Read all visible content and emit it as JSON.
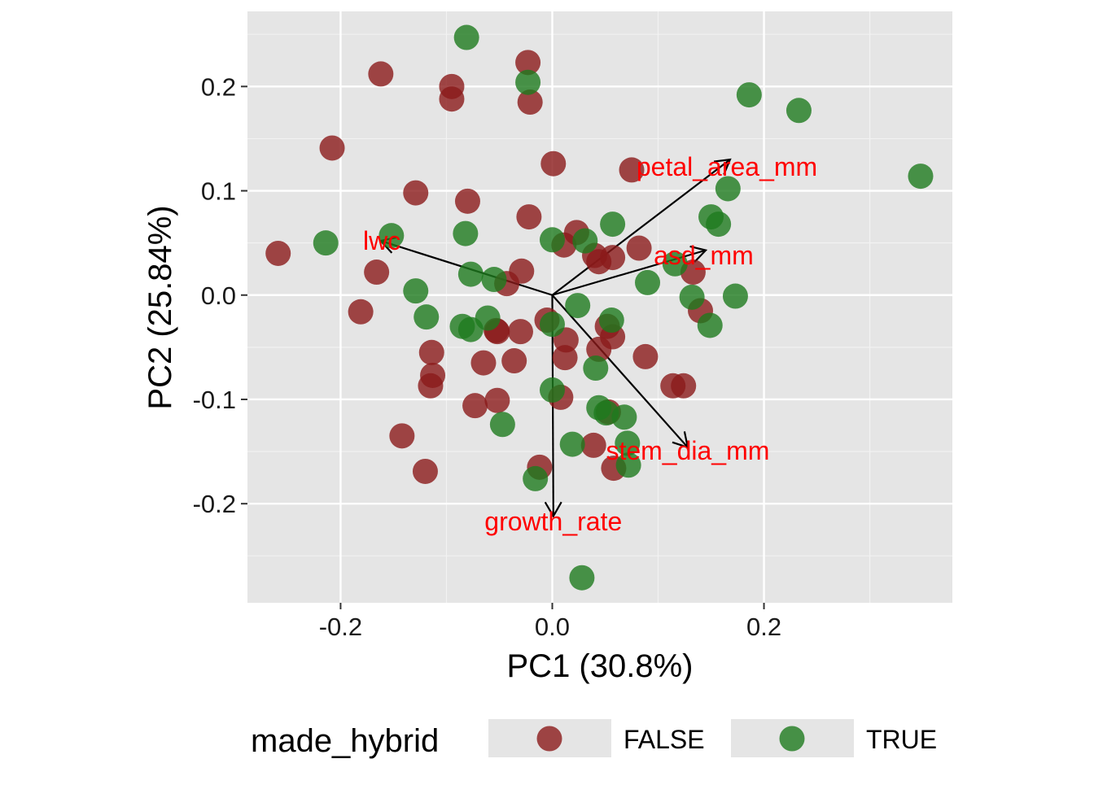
{
  "chart_data": {
    "type": "scatter",
    "title": "",
    "xlabel": "PC1 (30.8%)",
    "ylabel": "PC2 (25.84%)",
    "xlim": [
      -0.288,
      0.378
    ],
    "ylim": [
      -0.295,
      0.272
    ],
    "x_ticks": [
      -0.2,
      0.0,
      0.2
    ],
    "x_tick_labels": [
      "-0.2",
      "0.0",
      "0.2"
    ],
    "y_ticks": [
      -0.2,
      -0.1,
      0.0,
      0.1,
      0.2
    ],
    "y_tick_labels": [
      "-0.2",
      "-0.1",
      "0.0",
      "0.1",
      "0.2"
    ],
    "grid": true,
    "panel_background": "#E5E5E5",
    "legend": {
      "title": "made_hybrid",
      "position": "bottom",
      "entries": [
        {
          "label": "FALSE",
          "color": "#8B1A1A"
        },
        {
          "label": "TRUE",
          "color": "#1E7A1E"
        }
      ]
    },
    "series": [
      {
        "name": "FALSE",
        "color": "#8B1A1A",
        "points": [
          [
            -0.162,
            0.212
          ],
          [
            -0.023,
            0.223
          ],
          [
            -0.095,
            0.2
          ],
          [
            -0.095,
            0.188
          ],
          [
            -0.021,
            0.185
          ],
          [
            -0.208,
            0.141
          ],
          [
            0.001,
            0.126
          ],
          [
            0.075,
            0.12
          ],
          [
            -0.129,
            0.098
          ],
          [
            -0.08,
            0.09
          ],
          [
            -0.022,
            0.075
          ],
          [
            -0.259,
            0.04
          ],
          [
            0.023,
            0.06
          ],
          [
            0.011,
            0.048
          ],
          [
            0.082,
            0.045
          ],
          [
            0.04,
            0.038
          ],
          [
            0.044,
            0.032
          ],
          [
            0.057,
            0.036
          ],
          [
            -0.166,
            0.022
          ],
          [
            -0.029,
            0.023
          ],
          [
            0.133,
            0.022
          ],
          [
            -0.043,
            0.011
          ],
          [
            -0.181,
            -0.016
          ],
          [
            0.14,
            -0.015
          ],
          [
            -0.005,
            -0.024
          ],
          [
            -0.053,
            -0.034
          ],
          [
            -0.052,
            -0.035
          ],
          [
            -0.03,
            -0.035
          ],
          [
            0.052,
            -0.03
          ],
          [
            0.057,
            -0.04
          ],
          [
            0.013,
            -0.043
          ],
          [
            -0.114,
            -0.055
          ],
          [
            -0.065,
            -0.065
          ],
          [
            -0.036,
            -0.063
          ],
          [
            0.012,
            -0.06
          ],
          [
            0.044,
            -0.052
          ],
          [
            0.088,
            -0.059
          ],
          [
            -0.113,
            -0.077
          ],
          [
            -0.115,
            -0.087
          ],
          [
            0.114,
            -0.087
          ],
          [
            0.124,
            -0.087
          ],
          [
            -0.073,
            -0.106
          ],
          [
            -0.052,
            -0.101
          ],
          [
            0.008,
            -0.098
          ],
          [
            0.053,
            -0.112
          ],
          [
            -0.142,
            -0.135
          ],
          [
            0.039,
            -0.144
          ],
          [
            -0.12,
            -0.169
          ],
          [
            -0.012,
            -0.165
          ],
          [
            0.058,
            -0.166
          ]
        ]
      },
      {
        "name": "TRUE",
        "color": "#1E7A1E",
        "points": [
          [
            -0.081,
            0.247
          ],
          [
            -0.023,
            0.204
          ],
          [
            0.186,
            0.192
          ],
          [
            0.233,
            0.177
          ],
          [
            0.348,
            0.114
          ],
          [
            0.166,
            0.102
          ],
          [
            0.15,
            0.075
          ],
          [
            0.157,
            0.068
          ],
          [
            0.057,
            0.068
          ],
          [
            -0.214,
            0.05
          ],
          [
            -0.152,
            0.057
          ],
          [
            -0.082,
            0.059
          ],
          [
            0.0,
            0.053
          ],
          [
            0.031,
            0.052
          ],
          [
            0.116,
            0.03
          ],
          [
            -0.077,
            0.02
          ],
          [
            -0.055,
            0.015
          ],
          [
            0.09,
            0.012
          ],
          [
            -0.129,
            0.004
          ],
          [
            0.132,
            -0.002
          ],
          [
            0.173,
            -0.001
          ],
          [
            0.024,
            -0.01
          ],
          [
            -0.119,
            -0.021
          ],
          [
            -0.061,
            -0.022
          ],
          [
            0.056,
            -0.024
          ],
          [
            -0.085,
            -0.03
          ],
          [
            -0.077,
            -0.033
          ],
          [
            0.149,
            -0.029
          ],
          [
            0.0,
            -0.028
          ],
          [
            0.041,
            -0.07
          ],
          [
            0.0,
            -0.091
          ],
          [
            0.044,
            -0.108
          ],
          [
            0.051,
            -0.113
          ],
          [
            0.068,
            -0.117
          ],
          [
            -0.047,
            -0.124
          ],
          [
            0.019,
            -0.143
          ],
          [
            0.071,
            -0.142
          ],
          [
            0.072,
            -0.163
          ],
          [
            -0.016,
            -0.176
          ],
          [
            0.028,
            -0.271
          ]
        ]
      }
    ],
    "loadings": [
      {
        "name": "petal_area_mm",
        "x": 0.168,
        "y": 0.13,
        "label_x": 0.165,
        "label_y": 0.123
      },
      {
        "name": "lwc",
        "x": -0.162,
        "y": 0.052,
        "label_x": -0.161,
        "label_y": 0.052
      },
      {
        "name": "asd_mm",
        "x": 0.145,
        "y": 0.043,
        "label_x": 0.143,
        "label_y": 0.038
      },
      {
        "name": "stem_dia_mm",
        "x": 0.128,
        "y": -0.146,
        "label_x": 0.128,
        "label_y": -0.149
      },
      {
        "name": "growth_rate",
        "x": 0.001,
        "y": -0.212,
        "label_x": 0.001,
        "label_y": -0.217
      }
    ],
    "loading_color": "#FF0000",
    "arrow_color": "#000000"
  }
}
